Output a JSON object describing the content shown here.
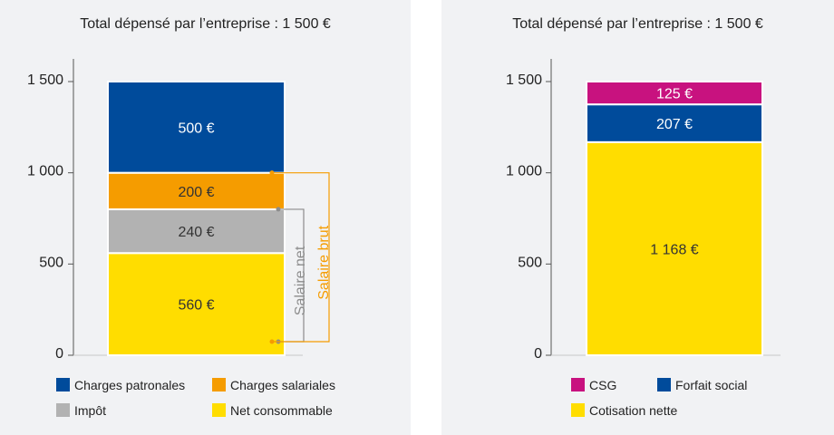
{
  "chart_data": [
    {
      "type": "bar",
      "stacked": true,
      "title": "Total dépensé par l’entreprise : 1 500 €",
      "ylim": [
        0,
        1500
      ],
      "yticks": [
        "0",
        "500",
        "1 000",
        "1 500"
      ],
      "ytick_values": [
        0,
        500,
        1000,
        1500
      ],
      "segments": [
        {
          "name": "Net consommable",
          "value": 560,
          "label": "560 €",
          "color": "#ffdd00",
          "text_color": "#333333"
        },
        {
          "name": "Impôt",
          "value": 240,
          "label": "240 €",
          "color": "#b2b2b2",
          "text_color": "#333333"
        },
        {
          "name": "Charges salariales",
          "value": 200,
          "label": "200 €",
          "color": "#f59c00",
          "text_color": "#333333"
        },
        {
          "name": "Charges patronales",
          "value": 500,
          "label": "500 €",
          "color": "#004b9b",
          "text_color": "#ffffff"
        }
      ],
      "brackets": [
        {
          "label": "Salaire net",
          "from": 0,
          "to": 800,
          "color": "#8c8c8c"
        },
        {
          "label": "Salaire brut",
          "from": 0,
          "to": 1000,
          "color": "#f59c00"
        }
      ],
      "legend": {
        "position": "bottom",
        "items": [
          {
            "label": "Charges patronales",
            "color": "#004b9b"
          },
          {
            "label": "Charges salariales",
            "color": "#f59c00"
          },
          {
            "label": "Impôt",
            "color": "#b2b2b2"
          },
          {
            "label": "Net consommable",
            "color": "#ffdd00"
          }
        ]
      }
    },
    {
      "type": "bar",
      "stacked": true,
      "title": "Total dépensé par l’entreprise : 1 500 €",
      "ylim": [
        0,
        1500
      ],
      "yticks": [
        "0",
        "500",
        "1 000",
        "1 500"
      ],
      "ytick_values": [
        0,
        500,
        1000,
        1500
      ],
      "segments": [
        {
          "name": "Cotisation nette",
          "value": 1168,
          "label": "1 168 €",
          "color": "#ffdd00",
          "text_color": "#333333"
        },
        {
          "name": "Forfait social",
          "value": 207,
          "label": "207 €",
          "color": "#004b9b",
          "text_color": "#ffffff"
        },
        {
          "name": "CSG",
          "value": 125,
          "label": "125 €",
          "color": "#c8127f",
          "text_color": "#ffffff"
        }
      ],
      "legend": {
        "position": "bottom",
        "items": [
          {
            "label": "CSG",
            "color": "#c8127f"
          },
          {
            "label": "Forfait social",
            "color": "#004b9b"
          },
          {
            "label": "Cotisation nette",
            "color": "#ffdd00"
          }
        ]
      }
    }
  ]
}
